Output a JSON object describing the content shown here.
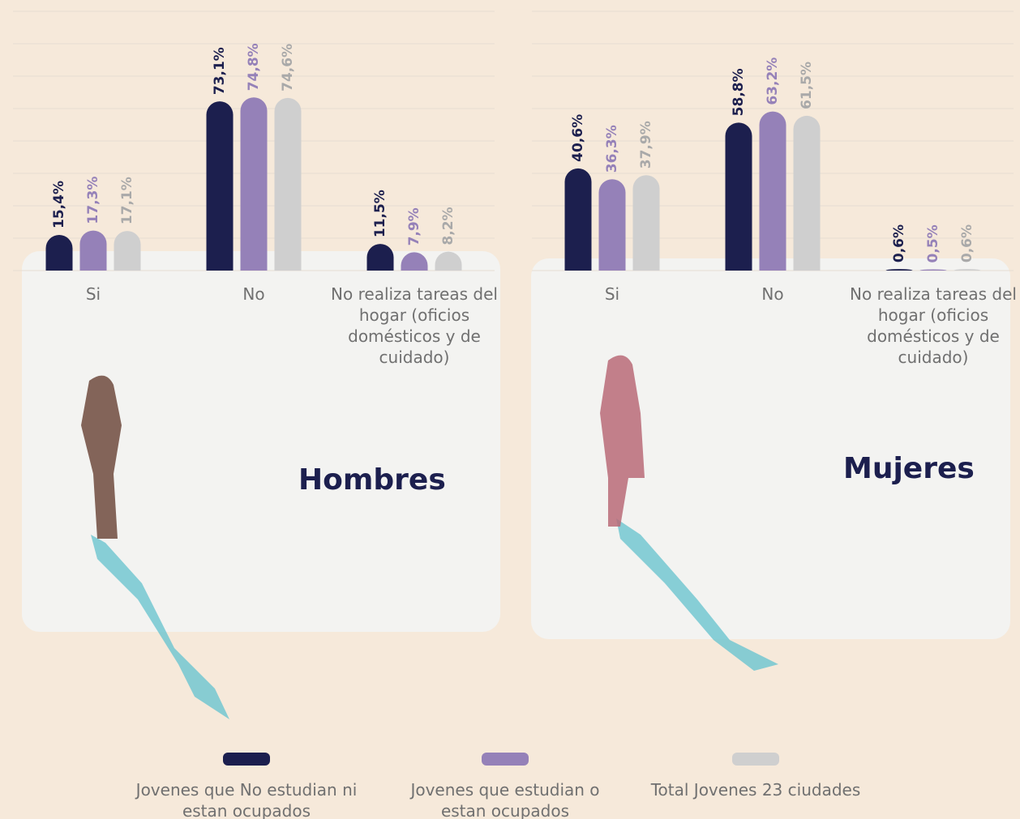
{
  "chart_data": [
    {
      "type": "bar",
      "title": "Hombres",
      "categories": [
        "Si",
        "No",
        "No realiza tareas del hogar (oficios domésticos y de cuidado)"
      ],
      "series": [
        {
          "name": "Jovenes que No estudian ni estan ocupados",
          "color": "#1c1f4e",
          "values": [
            15.4,
            73.1,
            11.5
          ],
          "value_labels": [
            "15,4%",
            "73,1%",
            "11,5%"
          ]
        },
        {
          "name": "Jovenes que estudian o estan ocupados",
          "color": "#9581b8",
          "values": [
            17.3,
            74.8,
            7.9
          ],
          "value_labels": [
            "17,3%",
            "74,8%",
            "7,9%"
          ]
        },
        {
          "name": "Total Jovenes 23 ciudades",
          "color": "#cfcfcf",
          "values": [
            17.1,
            74.6,
            8.2
          ],
          "value_labels": [
            "17,1%",
            "74,6%",
            "8,2%"
          ]
        }
      ],
      "ylim": [
        0,
        112
      ],
      "grid": true,
      "legend": "bottom"
    },
    {
      "type": "bar",
      "title": "Mujeres",
      "categories": [
        "Si",
        "No",
        "No realiza tareas del hogar (oficios domésticos y de cuidado)"
      ],
      "series": [
        {
          "color": "#1c1f4e",
          "values": [
            40.6,
            58.8,
            0.6
          ],
          "value_labels": [
            "40,6%",
            "58,8%",
            "0,6%"
          ]
        },
        {
          "color": "#9581b8",
          "values": [
            36.3,
            63.2,
            0.5
          ],
          "value_labels": [
            "36,3%",
            "63,2%",
            "0,5%"
          ]
        },
        {
          "color": "#cfcfcf",
          "values": [
            37.9,
            61.5,
            0.6
          ],
          "value_labels": [
            "37,9%",
            "61,5%",
            "0,6%"
          ]
        }
      ],
      "ylim": [
        0,
        103
      ],
      "grid": true
    }
  ]
}
